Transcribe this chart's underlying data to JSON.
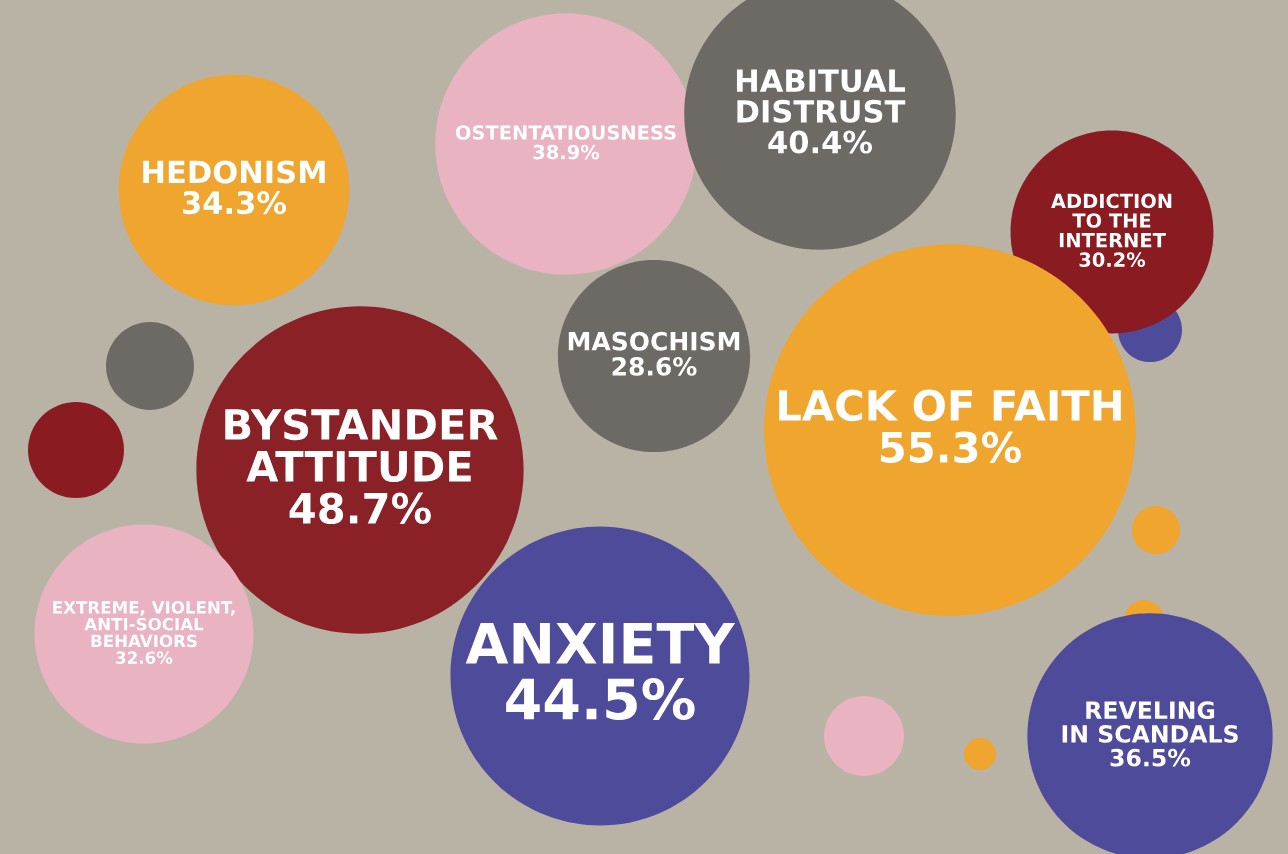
{
  "chart_data": {
    "type": "other",
    "categories": [
      "HEDONISM",
      "OSTENTATIOUSNESS",
      "HABITUAL\nDISTRUST",
      "ADDICTION\nTO THE\nINTERNET",
      "MASOCHISM",
      "BYSTANDER\nATTITUDE",
      "LACK OF FAITH",
      "EXTREME, VIOLENT,\nANTI-SOCIAL\nBEHAVIORS",
      "ANXIETY",
      "REVELING\nIN SCANDALS"
    ],
    "values": [
      34.3,
      38.9,
      40.4,
      30.2,
      28.6,
      48.7,
      55.3,
      32.6,
      44.5,
      36.5
    ],
    "value_labels": [
      "34.3%",
      "38.9%",
      "40.4%",
      "30.2%",
      "28.6%",
      "48.7%",
      "55.3%",
      "32.6%",
      "44.5%",
      "36.5%"
    ],
    "colors": [
      "#f0a52e",
      "#e9b3c1",
      "#6d6a65",
      "#8a1b20",
      "#6d6a65",
      "#8a2127",
      "#f0a52e",
      "#e9b3c1",
      "#4f4b9b",
      "#4f4b9b"
    ]
  }
}
